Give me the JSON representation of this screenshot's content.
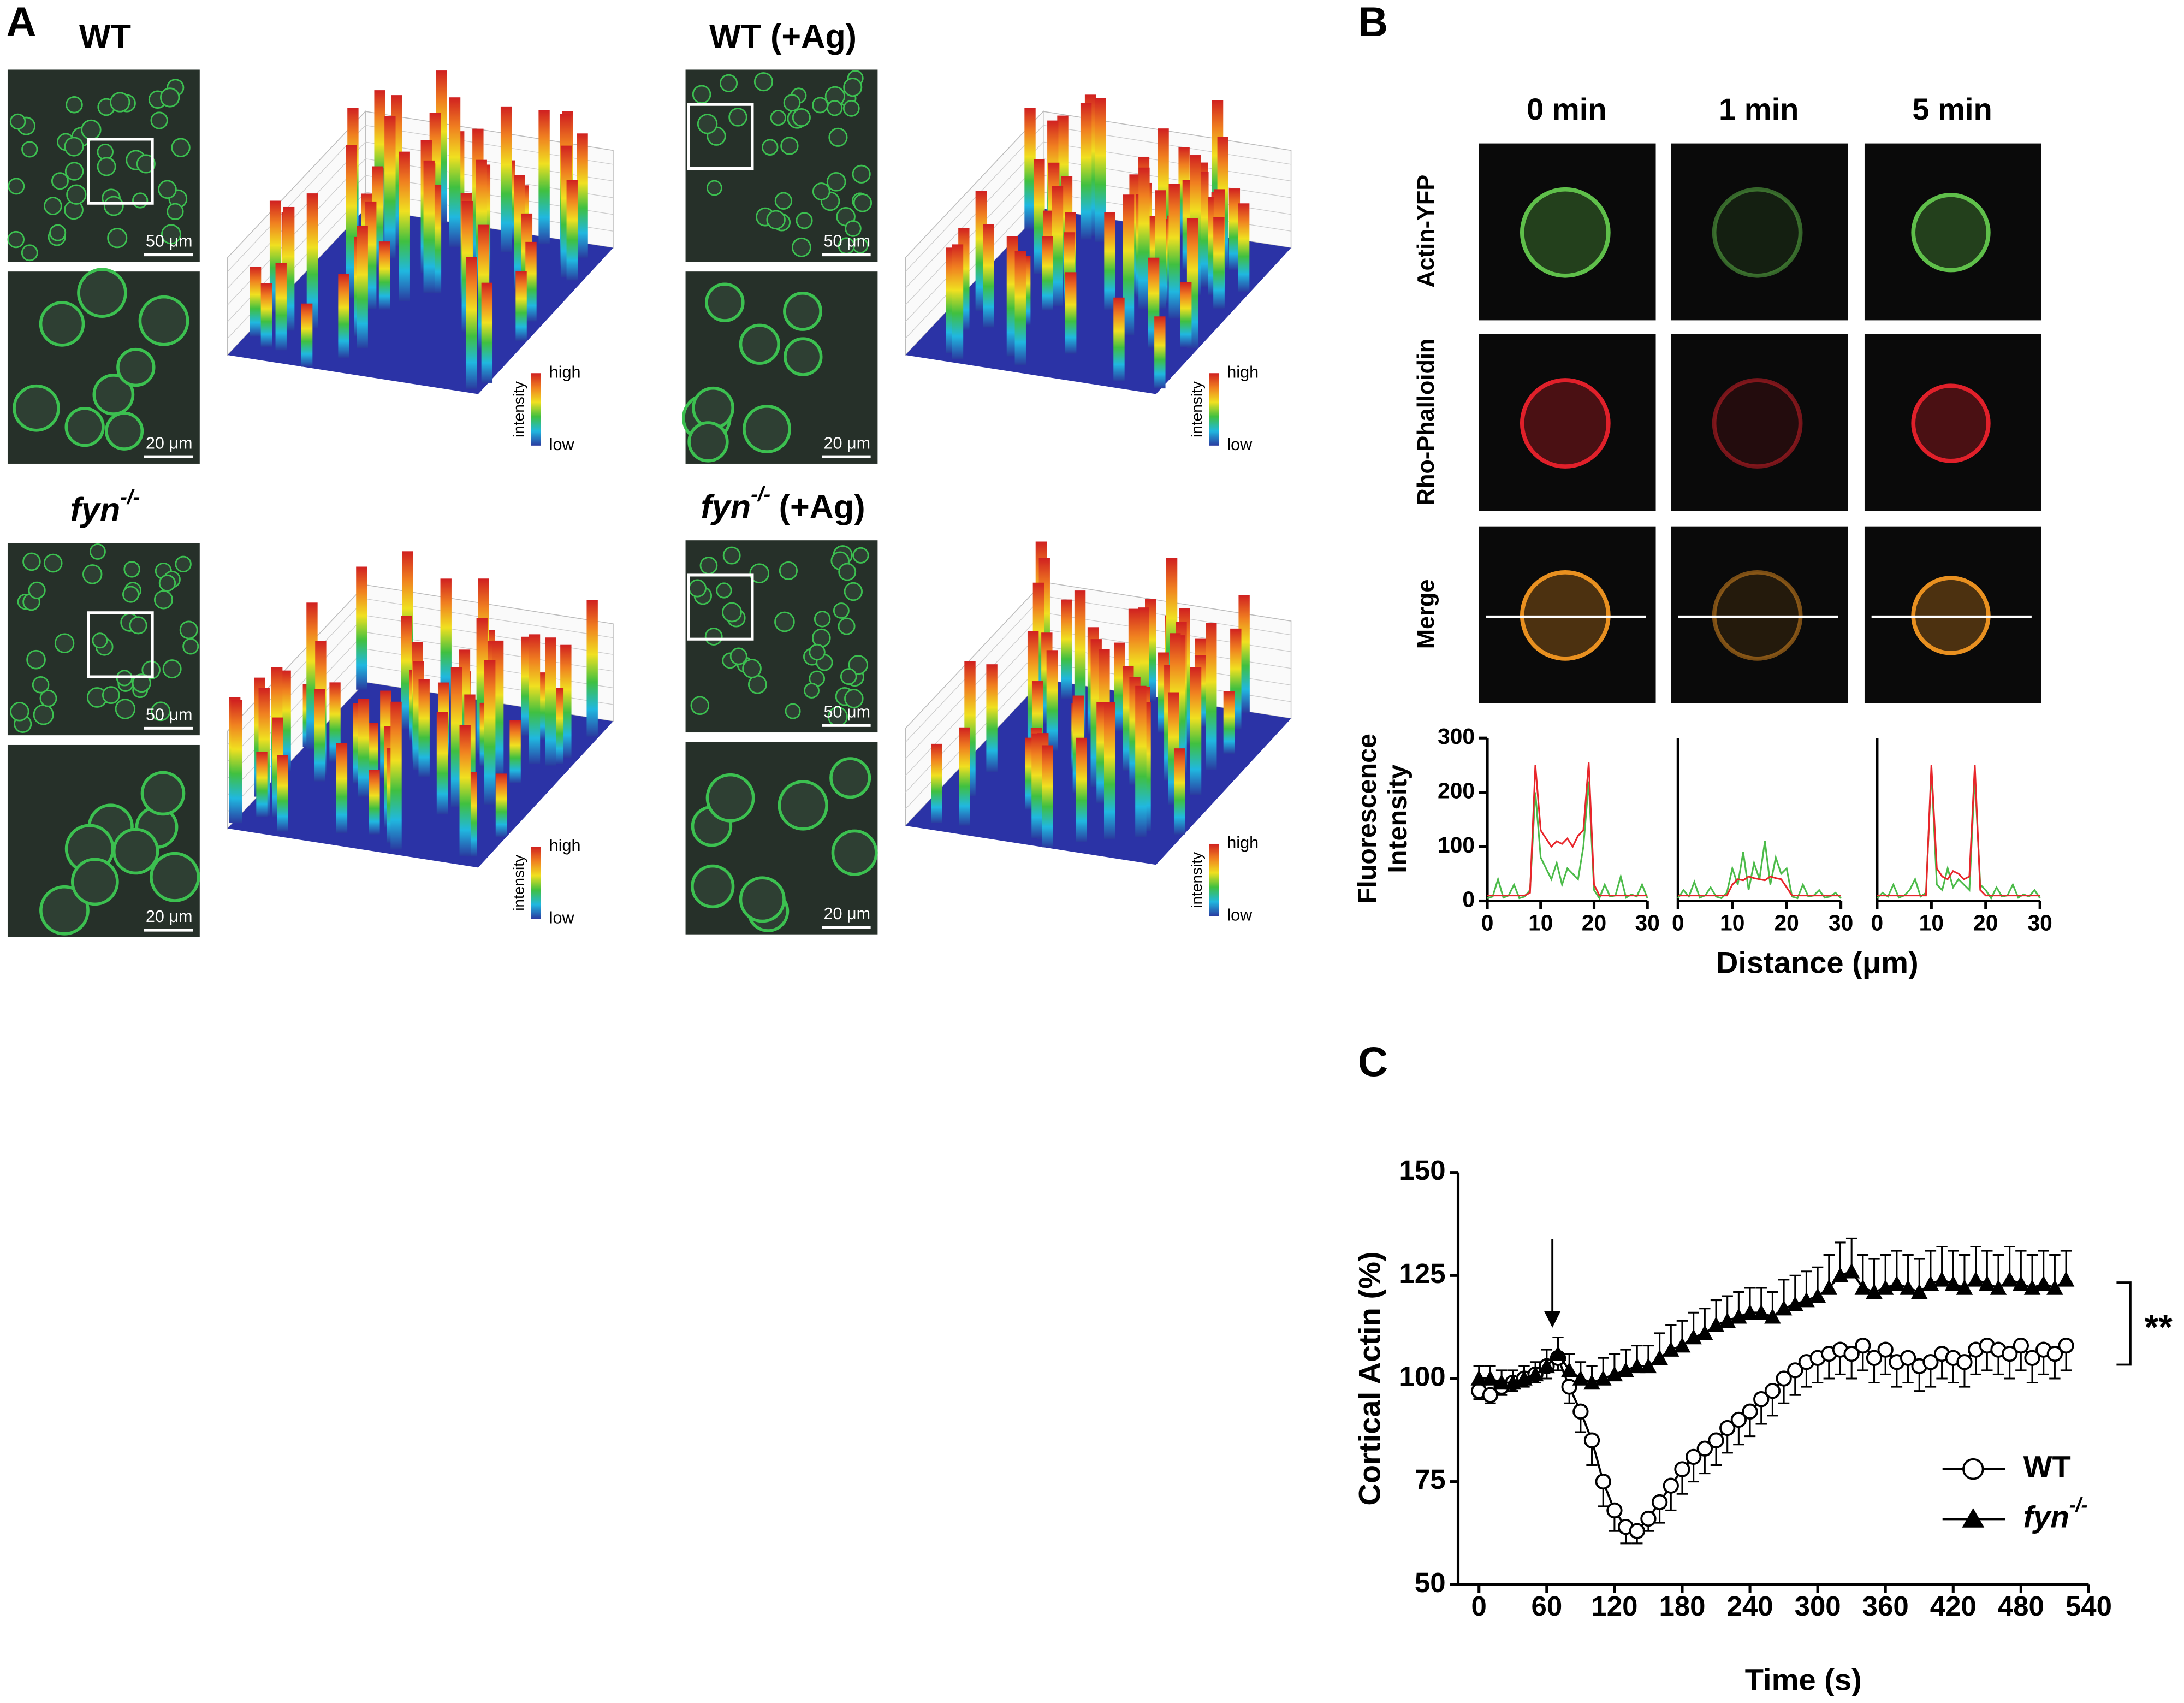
{
  "panel_a": {
    "label": "A",
    "conditions": [
      {
        "title": "WT"
      },
      {
        "title": "WT (+Ag)"
      },
      {
        "title": "fyn",
        "sup": "-/-"
      },
      {
        "title": "fyn",
        "sup": "-/-",
        "suffix": "(+Ag)"
      }
    ],
    "scale_bars": [
      "50 μm",
      "20 μm"
    ],
    "colorbar": {
      "high": "high",
      "low": "low",
      "label": "intensity"
    }
  },
  "panel_b": {
    "label": "B",
    "columns": [
      "0 min",
      "1 min",
      "5 min"
    ],
    "rows": [
      "Actin-YFP",
      "Rho-Phalloidin",
      "Merge"
    ]
  },
  "panel_c": {
    "label": "C"
  },
  "chart_data": [
    {
      "type": "line",
      "ylabel": [
        "Fluorescence",
        "Intensity"
      ],
      "x": [
        0,
        1,
        2,
        3,
        4,
        5,
        6,
        7,
        8,
        9,
        10,
        11,
        12,
        13,
        14,
        15,
        16,
        17,
        18,
        19,
        20,
        21,
        22,
        23,
        24,
        25,
        26,
        27,
        28,
        29,
        30
      ],
      "xlim": [
        0,
        30
      ],
      "xticks": [
        0,
        10,
        20,
        30
      ],
      "ylim": [
        0,
        300
      ],
      "yticks": [
        0,
        100,
        200,
        300
      ],
      "series": [
        {
          "color": "#4cbb4a",
          "values": [
            5,
            8,
            40,
            6,
            10,
            30,
            5,
            8,
            20,
            200,
            80,
            60,
            40,
            70,
            30,
            60,
            50,
            40,
            100,
            220,
            20,
            5,
            30,
            8,
            10,
            45,
            6,
            12,
            8,
            30,
            5
          ]
        },
        {
          "color": "#e8262b",
          "values": [
            10,
            10,
            10,
            10,
            10,
            10,
            10,
            10,
            15,
            250,
            130,
            115,
            100,
            110,
            105,
            115,
            100,
            120,
            130,
            255,
            30,
            10,
            10,
            10,
            10,
            10,
            10,
            10,
            10,
            10,
            10
          ]
        }
      ]
    },
    {
      "type": "line",
      "xlabel": "Distance (μm)",
      "x": [
        0,
        1,
        2,
        3,
        4,
        5,
        6,
        7,
        8,
        9,
        10,
        11,
        12,
        13,
        14,
        15,
        16,
        17,
        18,
        19,
        20,
        21,
        22,
        23,
        24,
        25,
        26,
        27,
        28,
        29,
        30
      ],
      "xlim": [
        0,
        30
      ],
      "xticks": [
        0,
        10,
        20,
        30
      ],
      "ylim": [
        0,
        300
      ],
      "series": [
        {
          "color": "#4cbb4a",
          "values": [
            5,
            20,
            8,
            35,
            6,
            10,
            25,
            8,
            5,
            15,
            60,
            30,
            90,
            20,
            70,
            40,
            110,
            30,
            80,
            50,
            60,
            8,
            5,
            30,
            8,
            10,
            20,
            6,
            8,
            15,
            5
          ]
        },
        {
          "color": "#e8262b",
          "values": [
            10,
            10,
            10,
            10,
            10,
            10,
            10,
            10,
            10,
            10,
            30,
            40,
            38,
            45,
            42,
            40,
            38,
            45,
            42,
            40,
            25,
            10,
            10,
            10,
            10,
            10,
            10,
            10,
            10,
            10,
            10
          ]
        }
      ]
    },
    {
      "type": "line",
      "x": [
        0,
        1,
        2,
        3,
        4,
        5,
        6,
        7,
        8,
        9,
        10,
        11,
        12,
        13,
        14,
        15,
        16,
        17,
        18,
        19,
        20,
        21,
        22,
        23,
        24,
        25,
        26,
        27,
        28,
        29,
        30
      ],
      "xlim": [
        0,
        30
      ],
      "xticks": [
        0,
        10,
        20,
        30
      ],
      "ylim": [
        0,
        300
      ],
      "series": [
        {
          "color": "#4cbb4a",
          "values": [
            5,
            15,
            8,
            30,
            6,
            10,
            20,
            40,
            8,
            15,
            240,
            30,
            20,
            60,
            25,
            40,
            30,
            20,
            230,
            30,
            20,
            5,
            25,
            8,
            10,
            30,
            6,
            12,
            8,
            20,
            5
          ]
        },
        {
          "color": "#e8262b",
          "values": [
            10,
            10,
            10,
            10,
            10,
            10,
            10,
            10,
            10,
            10,
            250,
            60,
            45,
            40,
            55,
            50,
            40,
            45,
            250,
            20,
            10,
            10,
            10,
            10,
            10,
            10,
            10,
            10,
            10,
            10,
            10
          ]
        }
      ]
    },
    {
      "type": "line",
      "xlabel": "Time (s)",
      "ylabel": "Cortical Actin (%)",
      "x": [
        0,
        10,
        20,
        30,
        40,
        50,
        60,
        70,
        80,
        90,
        100,
        110,
        120,
        130,
        140,
        150,
        160,
        170,
        180,
        190,
        200,
        210,
        220,
        230,
        240,
        250,
        260,
        270,
        280,
        290,
        300,
        310,
        320,
        330,
        340,
        350,
        360,
        370,
        380,
        390,
        400,
        410,
        420,
        430,
        440,
        450,
        460,
        470,
        480,
        490,
        500,
        510,
        520
      ],
      "xlim": [
        0,
        540
      ],
      "xticks": [
        0,
        60,
        120,
        180,
        240,
        300,
        360,
        420,
        480,
        540
      ],
      "ylim": [
        50,
        150
      ],
      "yticks": [
        50,
        75,
        100,
        125,
        150
      ],
      "stimulus_time": 65,
      "annotation": "**",
      "legend": "lower right",
      "series": [
        {
          "name": "WT",
          "color": "#000000",
          "marker": "circle",
          "error_direction": "down",
          "values": [
            97,
            96,
            98,
            99,
            100,
            101,
            103,
            105,
            98,
            92,
            85,
            75,
            68,
            64,
            63,
            66,
            70,
            74,
            78,
            81,
            83,
            85,
            88,
            90,
            92,
            95,
            97,
            100,
            102,
            104,
            105,
            106,
            107,
            106,
            108,
            105,
            107,
            104,
            105,
            103,
            104,
            106,
            105,
            104,
            107,
            108,
            107,
            106,
            108,
            105,
            107,
            106,
            108
          ],
          "errors": [
            2,
            2,
            2,
            2,
            2,
            2,
            3,
            3,
            4,
            5,
            6,
            6,
            5,
            4,
            3,
            3,
            5,
            6,
            6,
            6,
            6,
            6,
            6,
            6,
            6,
            6,
            6,
            6,
            6,
            6,
            6,
            6,
            6,
            6,
            6,
            6,
            6,
            6,
            6,
            6,
            6,
            6,
            6,
            6,
            6,
            6,
            6,
            6,
            6,
            6,
            6,
            6,
            6
          ]
        },
        {
          "name": "fyn",
          "name_sup": "-/-",
          "color": "#000000",
          "marker": "triangle",
          "error_direction": "up",
          "values": [
            100,
            100,
            99,
            99,
            100,
            101,
            103,
            106,
            102,
            100,
            99,
            100,
            101,
            102,
            103,
            103,
            105,
            107,
            108,
            110,
            111,
            113,
            114,
            115,
            116,
            116,
            115,
            117,
            118,
            119,
            120,
            122,
            125,
            126,
            122,
            121,
            122,
            123,
            122,
            121,
            123,
            124,
            123,
            122,
            124,
            123,
            122,
            124,
            123,
            122,
            123,
            122,
            124
          ],
          "errors": [
            3,
            3,
            3,
            3,
            3,
            3,
            4,
            4,
            4,
            4,
            4,
            5,
            5,
            5,
            5,
            5,
            6,
            6,
            6,
            6,
            6,
            6,
            6,
            6,
            6,
            6,
            6,
            7,
            7,
            7,
            7,
            8,
            8,
            8,
            8,
            8,
            8,
            8,
            8,
            8,
            8,
            8,
            8,
            8,
            8,
            8,
            8,
            8,
            8,
            8,
            8,
            8,
            7
          ]
        }
      ]
    }
  ]
}
